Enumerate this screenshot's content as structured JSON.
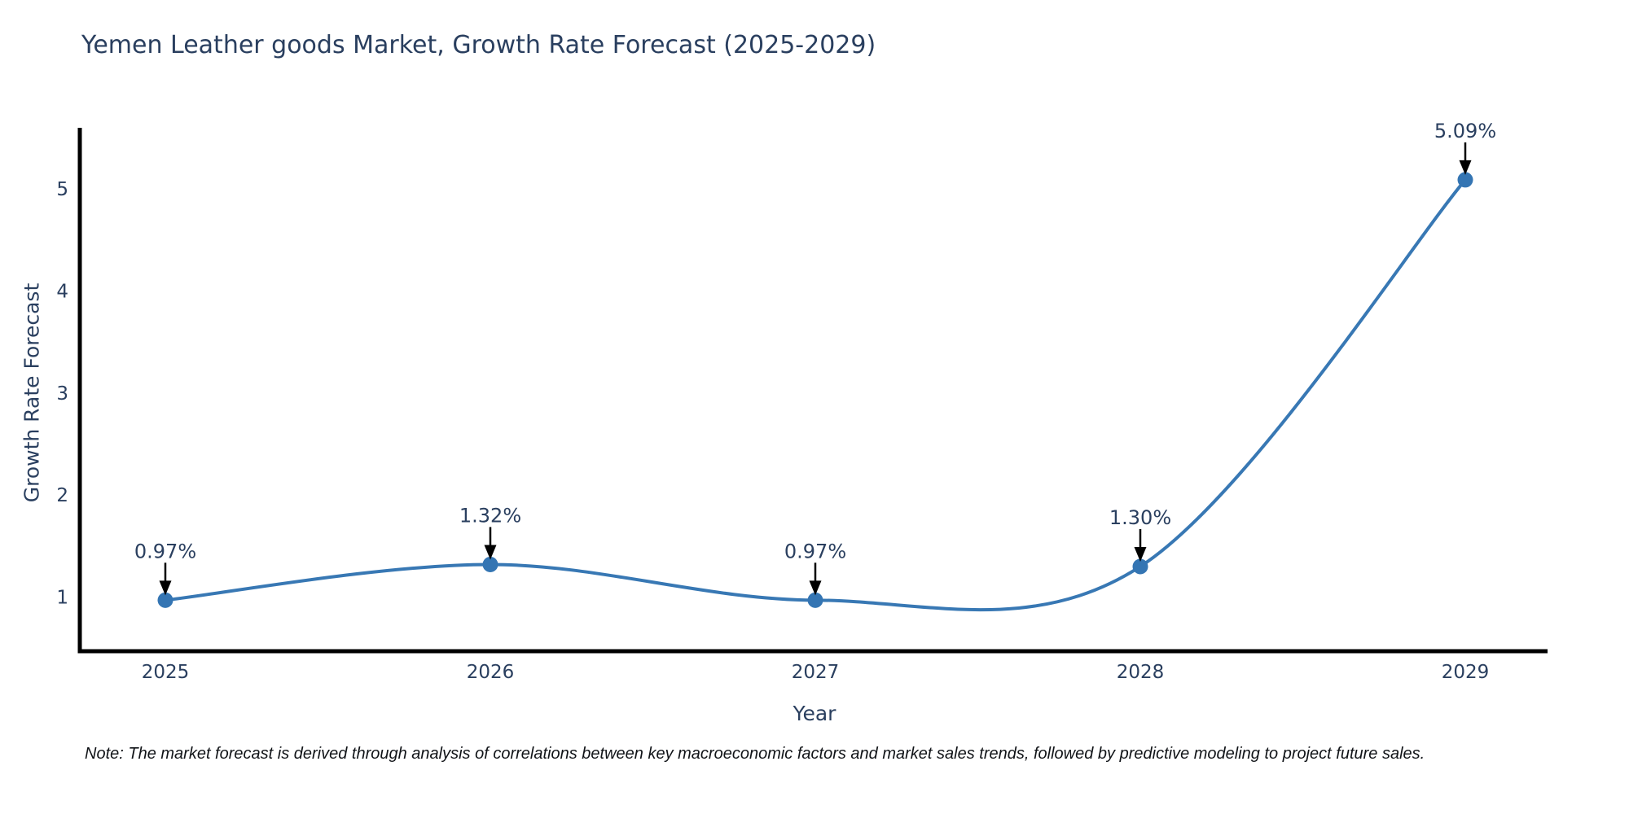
{
  "chart_data": {
    "type": "line",
    "title": "Yemen Leather goods Market, Growth Rate Forecast (2025-2029)",
    "xlabel": "Year",
    "ylabel": "Growth Rate Forecast",
    "categories": [
      "2025",
      "2026",
      "2027",
      "2028",
      "2029"
    ],
    "series": [
      {
        "name": "Growth Rate Forecast",
        "values": [
          0.97,
          1.32,
          0.97,
          1.3,
          5.09
        ],
        "point_labels": [
          "0.97%",
          "1.32%",
          "0.97%",
          "1.30%",
          "5.09%"
        ]
      }
    ],
    "line_shape": "spline",
    "yticks": [
      1,
      2,
      3,
      4,
      5
    ],
    "ylim": [
      0.47,
      5.6
    ],
    "grid": false,
    "legend_position": "none",
    "note": "Note: The market forecast is derived through analysis of correlations between key macroeconomic factors and market sales trends, followed by predictive modeling to project future sales.",
    "colors": {
      "line": "#3878b4",
      "marker": "#3475b3",
      "axis": "#000000",
      "text": "#2a3f5f",
      "annotation": "#000000"
    }
  }
}
